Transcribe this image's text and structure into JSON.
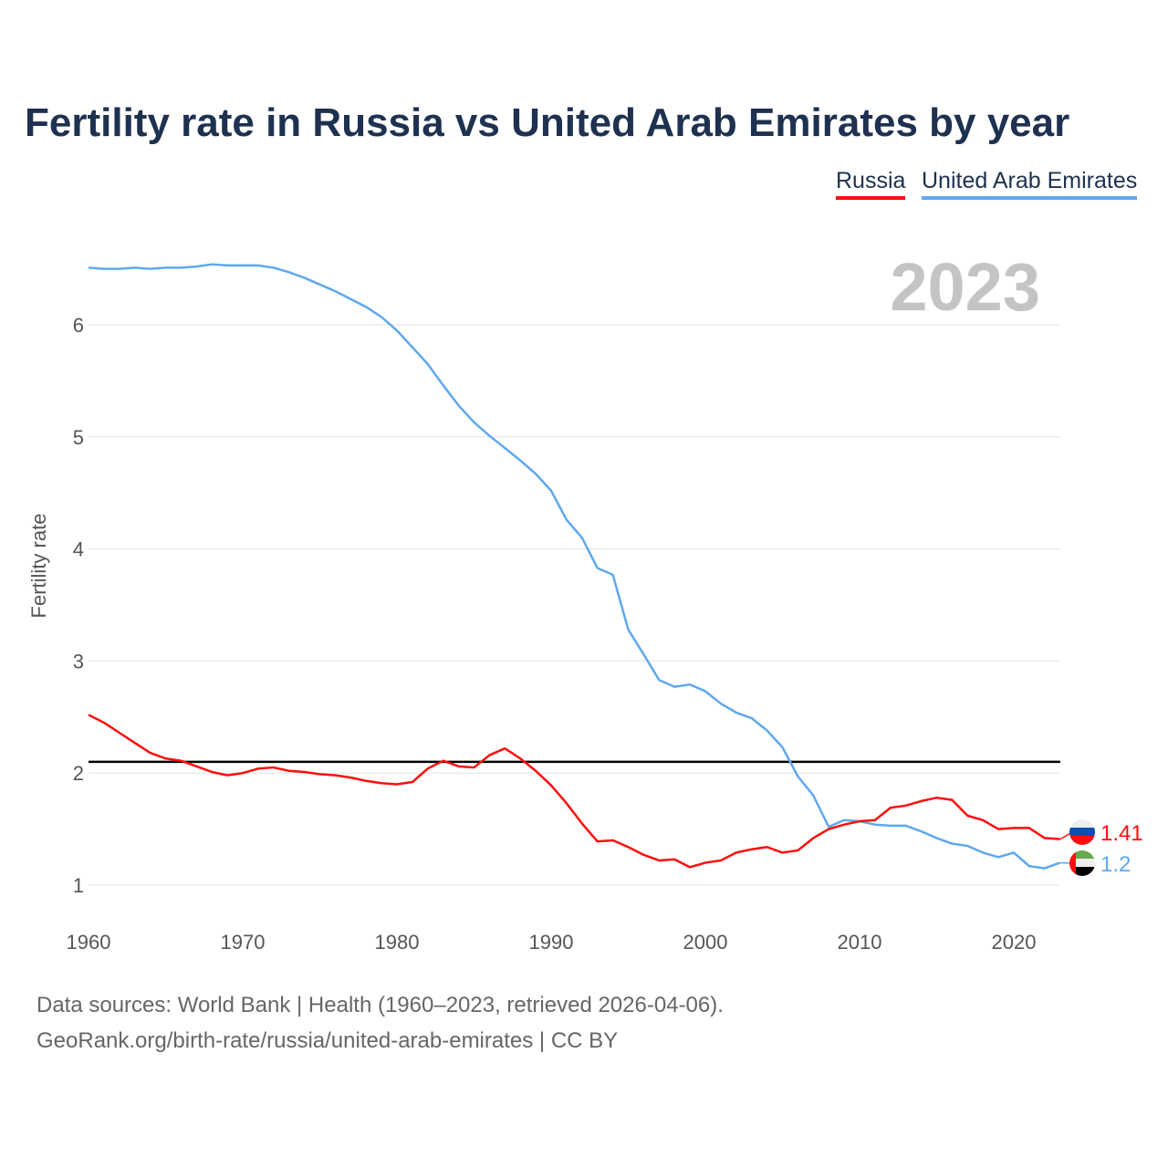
{
  "chart_data": {
    "type": "line",
    "title": "Fertility rate in Russia vs United Arab Emirates by year",
    "xlabel": "",
    "ylabel": "Fertility rate",
    "xlim": [
      1960,
      2023
    ],
    "ylim": [
      0.8,
      6.6
    ],
    "x_ticks": [
      "1960",
      "1970",
      "1980",
      "1990",
      "2000",
      "2010",
      "2020"
    ],
    "y_ticks": [
      "1",
      "2",
      "3",
      "4",
      "5",
      "6"
    ],
    "grid": true,
    "legend_placement": "top-right",
    "year_label": "2023",
    "reference_line": 2.1,
    "x": [
      1960,
      1961,
      1962,
      1963,
      1964,
      1965,
      1966,
      1967,
      1968,
      1969,
      1970,
      1971,
      1972,
      1973,
      1974,
      1975,
      1976,
      1977,
      1978,
      1979,
      1980,
      1981,
      1982,
      1983,
      1984,
      1985,
      1986,
      1987,
      1988,
      1989,
      1990,
      1991,
      1992,
      1993,
      1994,
      1995,
      1996,
      1997,
      1998,
      1999,
      2000,
      2001,
      2002,
      2003,
      2004,
      2005,
      2006,
      2007,
      2008,
      2009,
      2010,
      2011,
      2012,
      2013,
      2014,
      2015,
      2016,
      2017,
      2018,
      2019,
      2020,
      2021,
      2022,
      2023
    ],
    "series": [
      {
        "name": "Russia",
        "color": "#ff0d0d",
        "end_label": "1.41",
        "values": [
          2.52,
          2.45,
          2.36,
          2.27,
          2.18,
          2.13,
          2.11,
          2.06,
          2.01,
          1.98,
          2.0,
          2.04,
          2.05,
          2.02,
          2.01,
          1.99,
          1.98,
          1.96,
          1.93,
          1.91,
          1.9,
          1.92,
          2.04,
          2.11,
          2.06,
          2.05,
          2.16,
          2.22,
          2.13,
          2.02,
          1.89,
          1.73,
          1.55,
          1.39,
          1.4,
          1.34,
          1.27,
          1.22,
          1.23,
          1.16,
          1.2,
          1.22,
          1.29,
          1.32,
          1.34,
          1.29,
          1.31,
          1.42,
          1.5,
          1.54,
          1.57,
          1.58,
          1.69,
          1.71,
          1.75,
          1.78,
          1.76,
          1.62,
          1.58,
          1.5,
          1.51,
          1.51,
          1.42,
          1.41
        ]
      },
      {
        "name": "United Arab Emirates",
        "color": "#5fa8ec",
        "end_label": "1.2",
        "values": [
          6.51,
          6.5,
          6.5,
          6.51,
          6.5,
          6.51,
          6.51,
          6.52,
          6.54,
          6.53,
          6.53,
          6.53,
          6.51,
          6.47,
          6.42,
          6.36,
          6.3,
          6.23,
          6.16,
          6.07,
          5.95,
          5.8,
          5.65,
          5.46,
          5.28,
          5.13,
          5.01,
          4.9,
          4.79,
          4.67,
          4.52,
          4.26,
          4.1,
          3.83,
          3.77,
          3.28,
          3.06,
          2.83,
          2.77,
          2.79,
          2.73,
          2.62,
          2.54,
          2.49,
          2.38,
          2.23,
          1.97,
          1.8,
          1.52,
          1.58,
          1.57,
          1.54,
          1.53,
          1.53,
          1.48,
          1.42,
          1.37,
          1.35,
          1.29,
          1.25,
          1.29,
          1.17,
          1.15,
          1.2
        ]
      }
    ]
  },
  "footer": {
    "line1": "Data sources: World Bank | Health (1960–2023, retrieved 2026-04-06).",
    "line2": "GeoRank.org/birth-rate/russia/united-arab-emirates | CC BY"
  }
}
